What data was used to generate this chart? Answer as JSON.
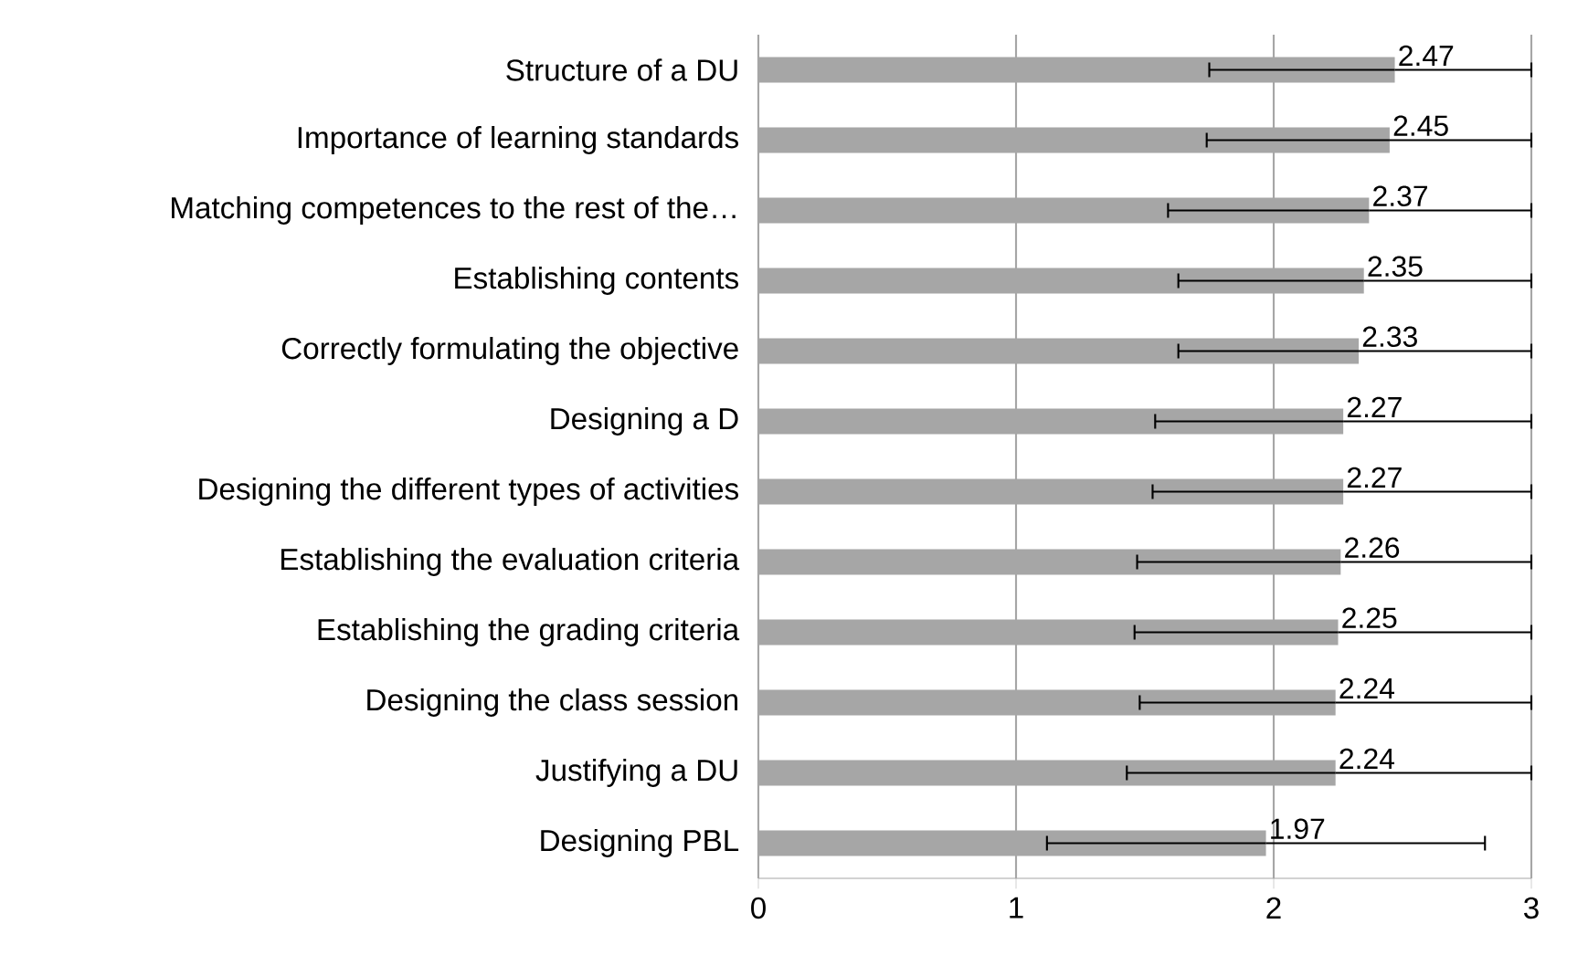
{
  "chart_data": {
    "type": "bar",
    "orientation": "horizontal",
    "categories": [
      "Structure  of a DU",
      "Importance of learning standards",
      "Matching competences to the rest of the…",
      "Establishing contents",
      "Correctly formulating the objective",
      "Designing a D",
      "Designing the different types of activities",
      "Establishing the evaluation criteria",
      "Establishing the grading criteria",
      "Designing the class session",
      "Justifying a DU",
      "Designing PBL"
    ],
    "values": [
      2.47,
      2.45,
      2.37,
      2.35,
      2.33,
      2.27,
      2.27,
      2.26,
      2.25,
      2.24,
      2.24,
      1.97
    ],
    "errors": [
      [
        1.75,
        3
      ],
      [
        1.74,
        3
      ],
      [
        1.59,
        3
      ],
      [
        1.63,
        3
      ],
      [
        1.63,
        3
      ],
      [
        1.54,
        3
      ],
      [
        1.53,
        3
      ],
      [
        1.47,
        3
      ],
      [
        1.46,
        3
      ],
      [
        1.48,
        3
      ],
      [
        1.43,
        3
      ],
      [
        1.12,
        2.82
      ]
    ],
    "color": "#a6a6a6",
    "xlim": [
      0,
      3
    ],
    "xticks": [
      0,
      1,
      2,
      3
    ],
    "grid": "x",
    "data_labels": true
  }
}
